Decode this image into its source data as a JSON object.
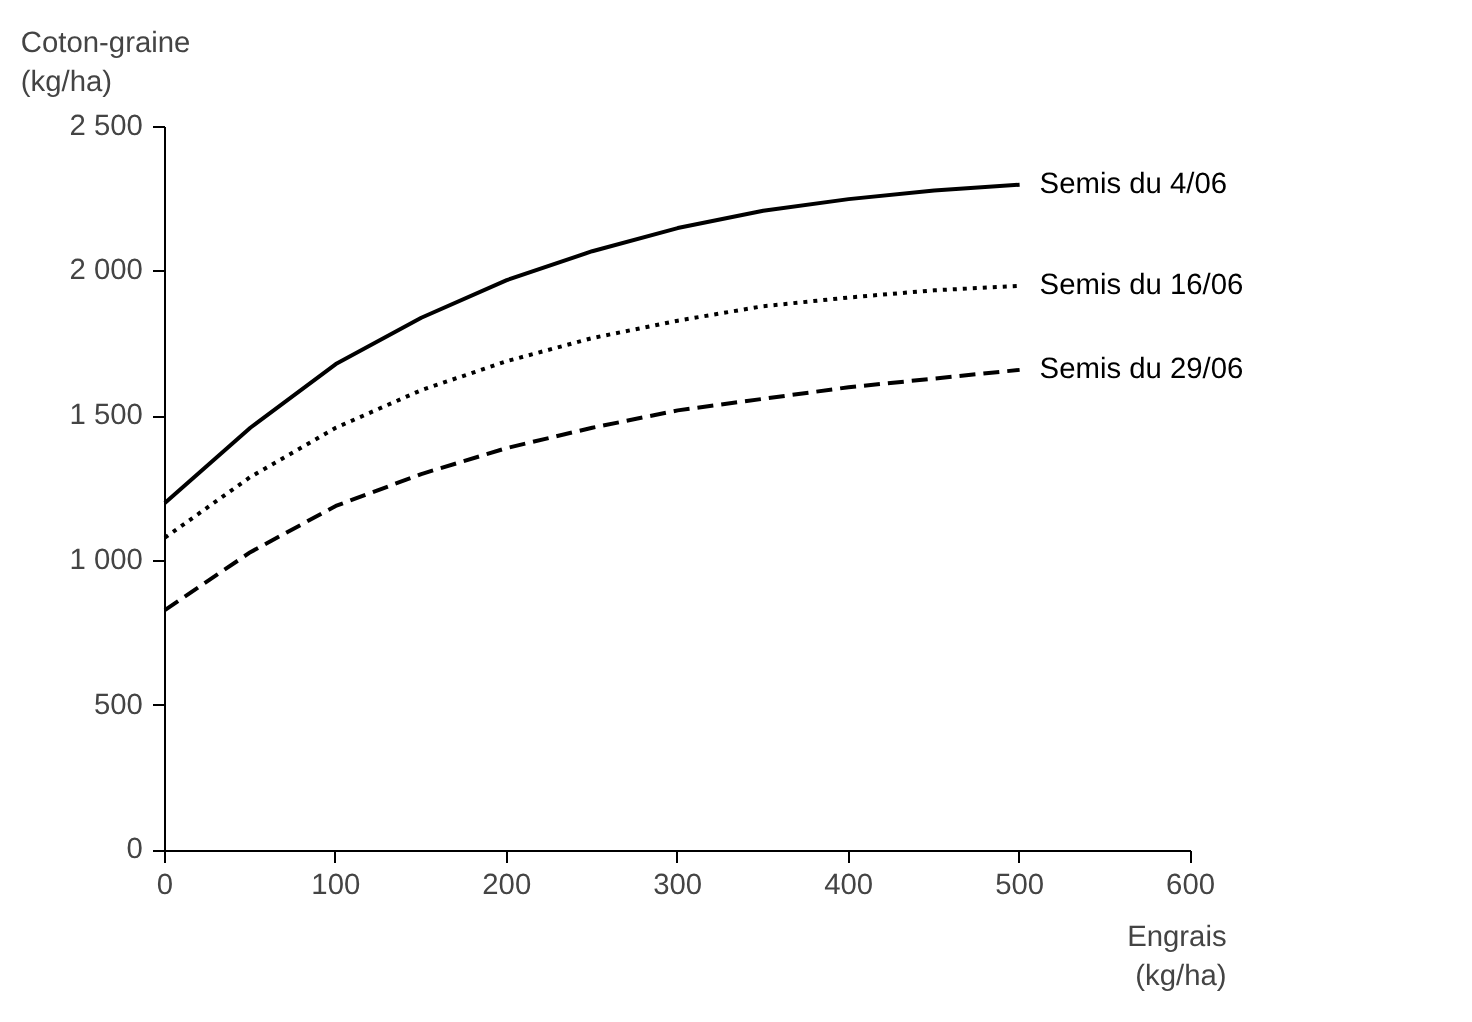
{
  "chart_data": {
    "type": "line",
    "xlabel": "Engrais\n(kg/ha)",
    "ylabel": "Coton-graine\n(kg/ha)",
    "x": [
      0,
      50,
      100,
      150,
      200,
      250,
      300,
      350,
      400,
      450,
      500
    ],
    "xlim": [
      0,
      600
    ],
    "xticks": [
      0,
      100,
      200,
      300,
      400,
      500,
      600
    ],
    "ylim": [
      0,
      2500
    ],
    "yticks": [
      0,
      500,
      {
        "value": 1000,
        "label": "1 000"
      },
      {
        "value": 1500,
        "label": "1 500"
      },
      {
        "value": 2000,
        "label": "2 000"
      },
      {
        "value": 2500,
        "label": "2 500"
      }
    ],
    "grid": false,
    "series": [
      {
        "name": "Semis du 4/06",
        "color": "#000000",
        "line_style": "solid",
        "values": [
          1200,
          1460,
          1680,
          1840,
          1970,
          2070,
          2150,
          2210,
          2250,
          2280,
          2300
        ]
      },
      {
        "name": "Semis du 16/06",
        "color": "#000000",
        "line_style": "dotted",
        "values": [
          1080,
          1290,
          1460,
          1590,
          1690,
          1770,
          1830,
          1880,
          1910,
          1935,
          1950
        ]
      },
      {
        "name": "Semis du 29/06",
        "color": "#000000",
        "line_style": "dashed",
        "values": [
          830,
          1030,
          1190,
          1300,
          1390,
          1460,
          1520,
          1560,
          1600,
          1630,
          1660
        ]
      }
    ]
  }
}
